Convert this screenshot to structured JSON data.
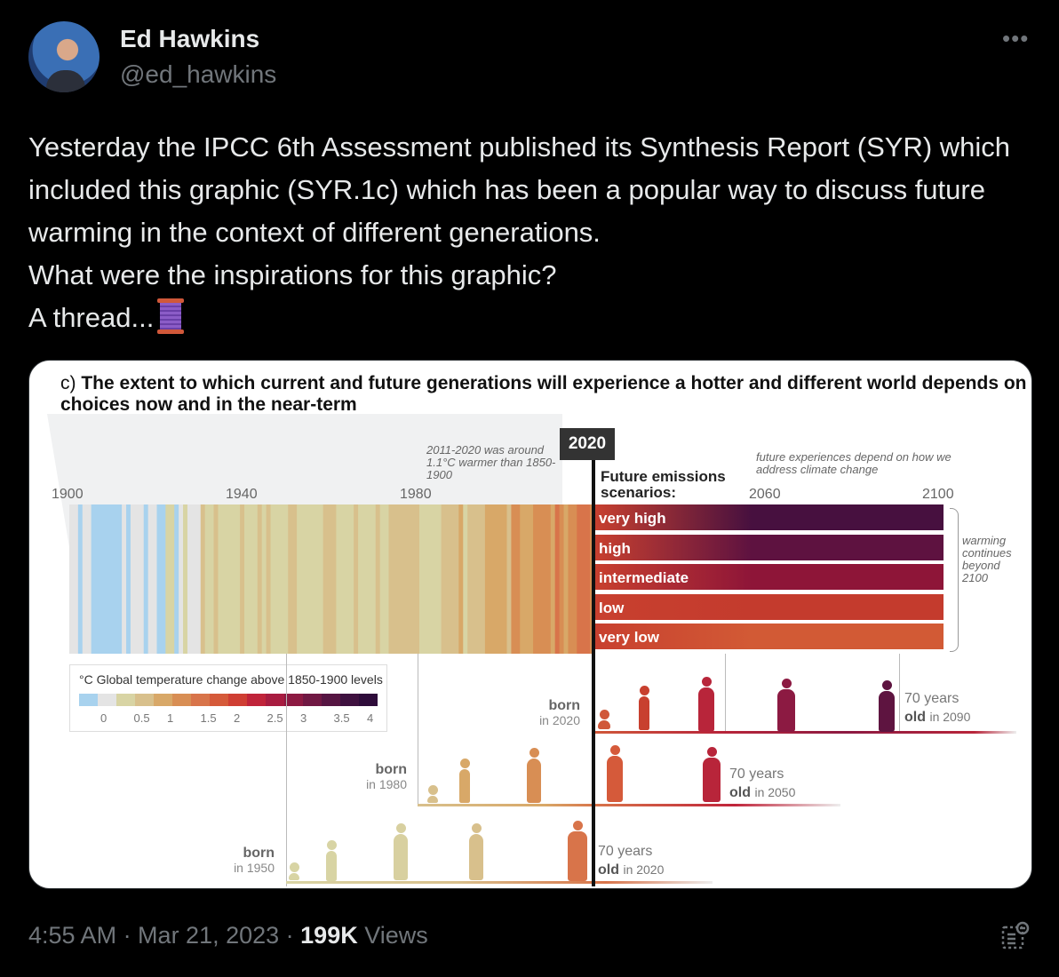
{
  "author": {
    "name": "Ed Hawkins",
    "handle": "@ed_hawkins"
  },
  "more_label": "•••",
  "tweet_text": "Yesterday the IPCC 6th Assessment published its Synthesis Report (SYR) which included this graphic (SYR.1c) which has been a popular way to discuss future warming in the context of different generations.",
  "tweet_text2": "What were the inspirations for this graphic?",
  "tweet_text3": "A thread...",
  "graphic": {
    "title_prefix": "c)",
    "title": "The extent to which current and future generations will experience a hotter and different world depends on choices now and in the near-term",
    "year_labels": [
      "1900",
      "1940",
      "1980",
      "2060",
      "2100"
    ],
    "now_label": "2020",
    "note_past": "2011-2020 was around 1.1°C warmer than 1850-1900",
    "note_future": "future experiences depend on how we address climate change",
    "future_label": "Future emissions scenarios:",
    "scenarios": [
      "very high",
      "high",
      "intermediate",
      "low",
      "very low"
    ],
    "scenario_colors": [
      "#47103f",
      "#5e1240",
      "#8e1538",
      "#c43b2d",
      "#d25a35"
    ],
    "warming_note": "warming continues beyond 2100",
    "legend": {
      "title": "°C Global temperature change above 1850-1900 levels",
      "ticks": [
        "0",
        "0.5",
        "1",
        "1.5",
        "2",
        "2.5",
        "3",
        "3.5",
        "4"
      ],
      "colors": [
        "#a8d2ee",
        "#e4e4e4",
        "#d8d4a4",
        "#d8c08c",
        "#d8a868",
        "#d88e54",
        "#d8744a",
        "#d55a3a",
        "#cf3e33",
        "#c0243a",
        "#a81c40",
        "#8c1a42",
        "#701843",
        "#561542",
        "#3e113f",
        "#2e0c3a"
      ]
    },
    "generations": [
      {
        "born": "born",
        "born_year": "in 2020",
        "old_prefix": "70 years",
        "old_word": "old",
        "old_year": "in 2090"
      },
      {
        "born": "born",
        "born_year": "in 1980",
        "old_prefix": "70 years",
        "old_word": "old",
        "old_year": "in 2050"
      },
      {
        "born": "born",
        "born_year": "in 1950",
        "old_prefix": "70 years",
        "old_word": "old",
        "old_year": "in 2020"
      }
    ]
  },
  "footer": {
    "time": "4:55 AM · Mar 21, 2023 · ",
    "views_count": "199K",
    "views_label": " Views"
  }
}
